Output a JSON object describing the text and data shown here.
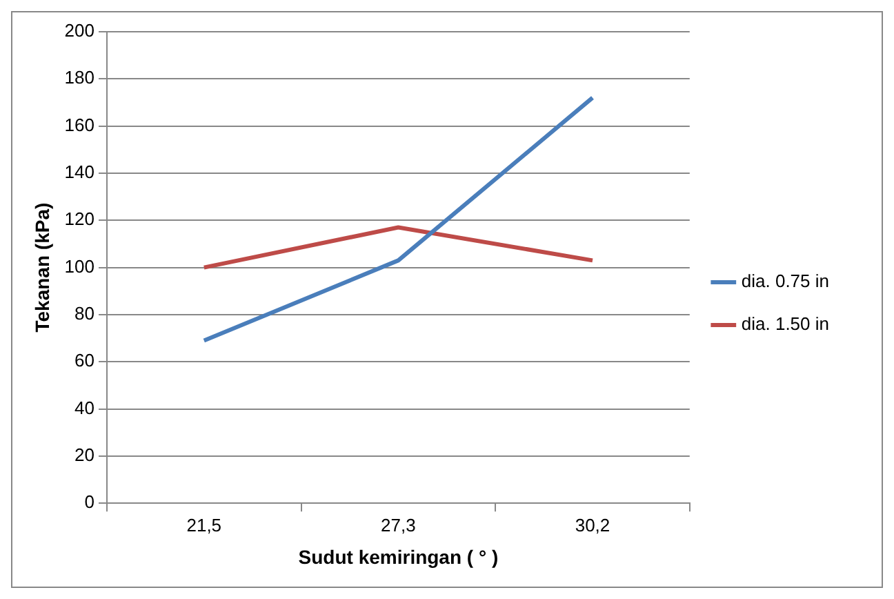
{
  "chart_data": {
    "type": "line",
    "xlabel": "Sudut kemiringan ( ° )",
    "ylabel": "Tekanan (kPa)",
    "categories": [
      "21,5",
      "27,3",
      "30,2"
    ],
    "series": [
      {
        "name": "dia. 0.75 in",
        "color": "#4a7ebb",
        "values": [
          69,
          103,
          172
        ]
      },
      {
        "name": "dia. 1.50 in",
        "color": "#be4b48",
        "values": [
          100,
          117,
          103
        ]
      }
    ],
    "ylim": [
      0,
      200
    ],
    "yticks": [
      0,
      20,
      40,
      60,
      80,
      100,
      120,
      140,
      160,
      180,
      200
    ],
    "grid": "y",
    "legend": "right",
    "marker": "none",
    "line_style": "solid"
  }
}
